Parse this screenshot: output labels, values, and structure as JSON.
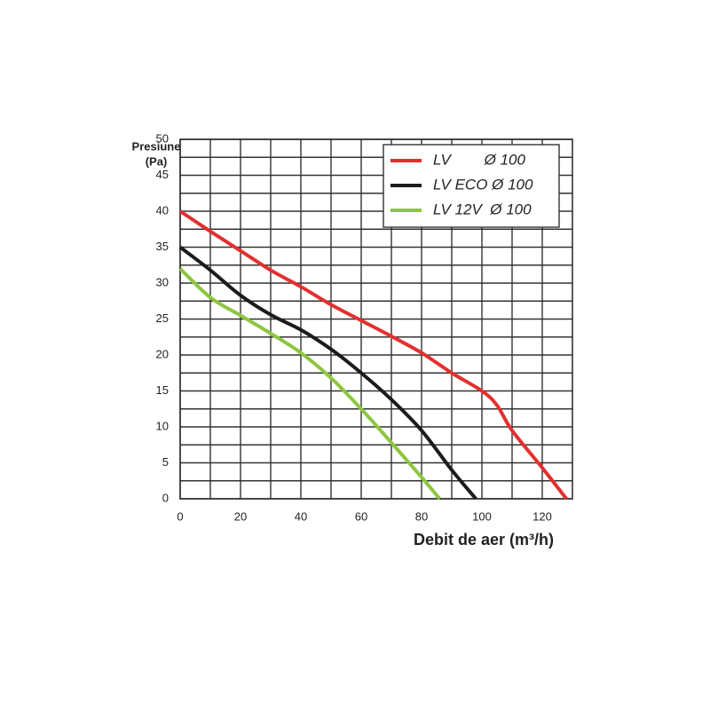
{
  "chart_data": {
    "type": "line",
    "ylabel": "Presiune",
    "ylabel_unit": "(Pa)",
    "xlabel": "Debit de aer (m³/h)",
    "xlim": [
      0,
      130
    ],
    "xticks": [
      0,
      20,
      40,
      60,
      80,
      100,
      120
    ],
    "ylim": [
      0,
      50
    ],
    "yticks": [
      0,
      5,
      10,
      15,
      20,
      25,
      30,
      35,
      40,
      45,
      50
    ],
    "grid": true,
    "legend": "upper right",
    "series": [
      {
        "name": "LV        Ø 100",
        "color": "#e2302f",
        "x": [
          0,
          10,
          20,
          30,
          40,
          50,
          60,
          70,
          80,
          90,
          100,
          105,
          110,
          120,
          128
        ],
        "values": [
          40,
          37.2,
          34.5,
          31.8,
          29.5,
          27,
          24.8,
          22.6,
          20.3,
          17.5,
          15,
          13,
          9.5,
          4.3,
          0
        ]
      },
      {
        "name": "LV ECO Ø 100",
        "color": "#1c1c1c",
        "x": [
          0,
          10,
          20,
          30,
          40,
          50,
          60,
          70,
          80,
          90,
          98
        ],
        "values": [
          35,
          31.8,
          28.3,
          25.6,
          23.5,
          20.8,
          17.5,
          13.8,
          9.5,
          4,
          0
        ]
      },
      {
        "name": "LV 12V  Ø 100",
        "color": "#8dc63f",
        "x": [
          0,
          10,
          20,
          30,
          40,
          50,
          60,
          70,
          80,
          86
        ],
        "values": [
          32,
          28,
          25.5,
          23,
          20.3,
          16.8,
          12.5,
          7.8,
          3,
          0
        ]
      }
    ]
  }
}
